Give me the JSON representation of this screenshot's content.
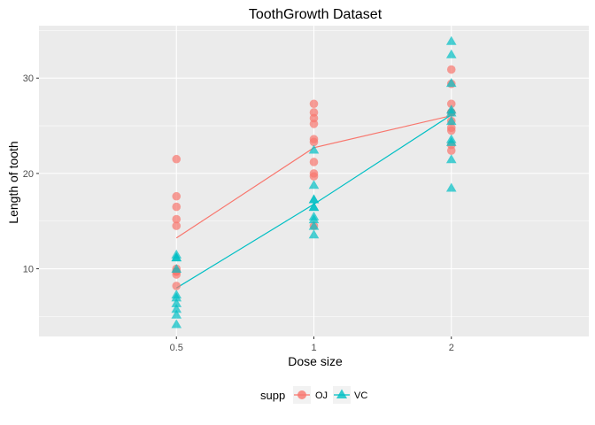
{
  "chart_data": {
    "type": "scatter",
    "title": "ToothGrowth Dataset",
    "xlabel": "Dose size",
    "ylabel": "Length of tooth",
    "categories": [
      "0.5",
      "1",
      "2"
    ],
    "ylim": [
      2.9,
      35.5
    ],
    "yticks": [
      10,
      20,
      30
    ],
    "grid": true,
    "legend": {
      "title": "supp",
      "placement": "bottom",
      "entries": [
        "OJ",
        "VC"
      ]
    },
    "series": [
      {
        "name": "OJ",
        "color": "#F8766D",
        "marker": "circle",
        "points": [
          {
            "x": "0.5",
            "y": [
              15.2,
              21.5,
              17.6,
              9.7,
              14.5,
              10.0,
              8.2,
              9.4,
              16.5,
              9.7
            ]
          },
          {
            "x": "1",
            "y": [
              19.7,
              23.3,
              23.6,
              26.4,
              20.0,
              25.2,
              25.8,
              21.2,
              14.5,
              27.3
            ]
          },
          {
            "x": "2",
            "y": [
              25.5,
              26.4,
              22.4,
              24.5,
              24.8,
              30.9,
              26.4,
              27.3,
              29.4,
              23.0
            ]
          }
        ],
        "means": [
          13.23,
          22.7,
          26.06
        ]
      },
      {
        "name": "VC",
        "color": "#00BFC4",
        "marker": "triangle",
        "points": [
          {
            "x": "0.5",
            "y": [
              4.2,
              11.5,
              7.3,
              5.8,
              6.4,
              10.0,
              11.2,
              11.2,
              5.2,
              7.0
            ]
          },
          {
            "x": "1",
            "y": [
              16.5,
              16.5,
              15.2,
              17.3,
              22.5,
              17.3,
              13.6,
              14.5,
              18.8,
              15.5
            ]
          },
          {
            "x": "2",
            "y": [
              23.6,
              18.5,
              33.9,
              25.5,
              26.4,
              32.5,
              26.7,
              21.5,
              23.3,
              29.5
            ]
          }
        ],
        "means": [
          7.98,
          16.77,
          26.14
        ]
      }
    ]
  }
}
